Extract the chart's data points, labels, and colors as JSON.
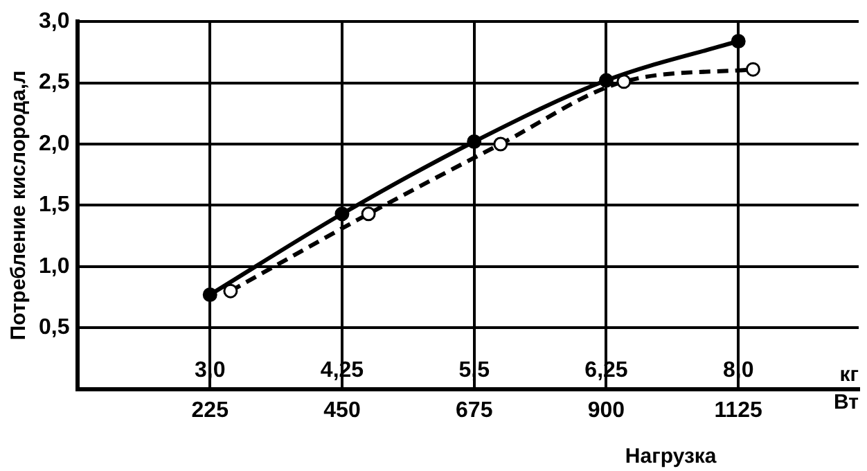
{
  "chart_data": {
    "type": "line",
    "ylabel": "Потребление кислорода,л",
    "xlabel": "Нагрузка",
    "annotations": [
      "3,0",
      "4,25",
      "5,5",
      "6,25",
      "8,0",
      "кг",
      "Вт"
    ],
    "xlim": [
      0,
      1330
    ],
    "xticks": [
      225,
      450,
      675,
      900,
      1125
    ],
    "ylim": [
      0,
      3.0
    ],
    "yticks": [
      {
        "value": 0.5,
        "label": "0,5"
      },
      {
        "value": 1.0,
        "label": "1,0"
      },
      {
        "value": 1.5,
        "label": "1,5"
      },
      {
        "value": 2.0,
        "label": "2,0"
      },
      {
        "value": 2.5,
        "label": "2,5"
      },
      {
        "value": 3.0,
        "label": "3,0"
      }
    ],
    "grid": true,
    "marker": "circle",
    "series": [
      {
        "color": "#000000",
        "line_style": "solid",
        "x": [
          225,
          450,
          675,
          900,
          1125
        ],
        "values": [
          0.77,
          1.43,
          2.02,
          2.52,
          2.84
        ]
      },
      {
        "color": "#000000",
        "line_style": "dashed",
        "x": [
          260,
          495,
          720,
          930,
          1150
        ],
        "values": [
          0.8,
          1.43,
          2.0,
          2.51,
          2.61
        ]
      }
    ]
  }
}
